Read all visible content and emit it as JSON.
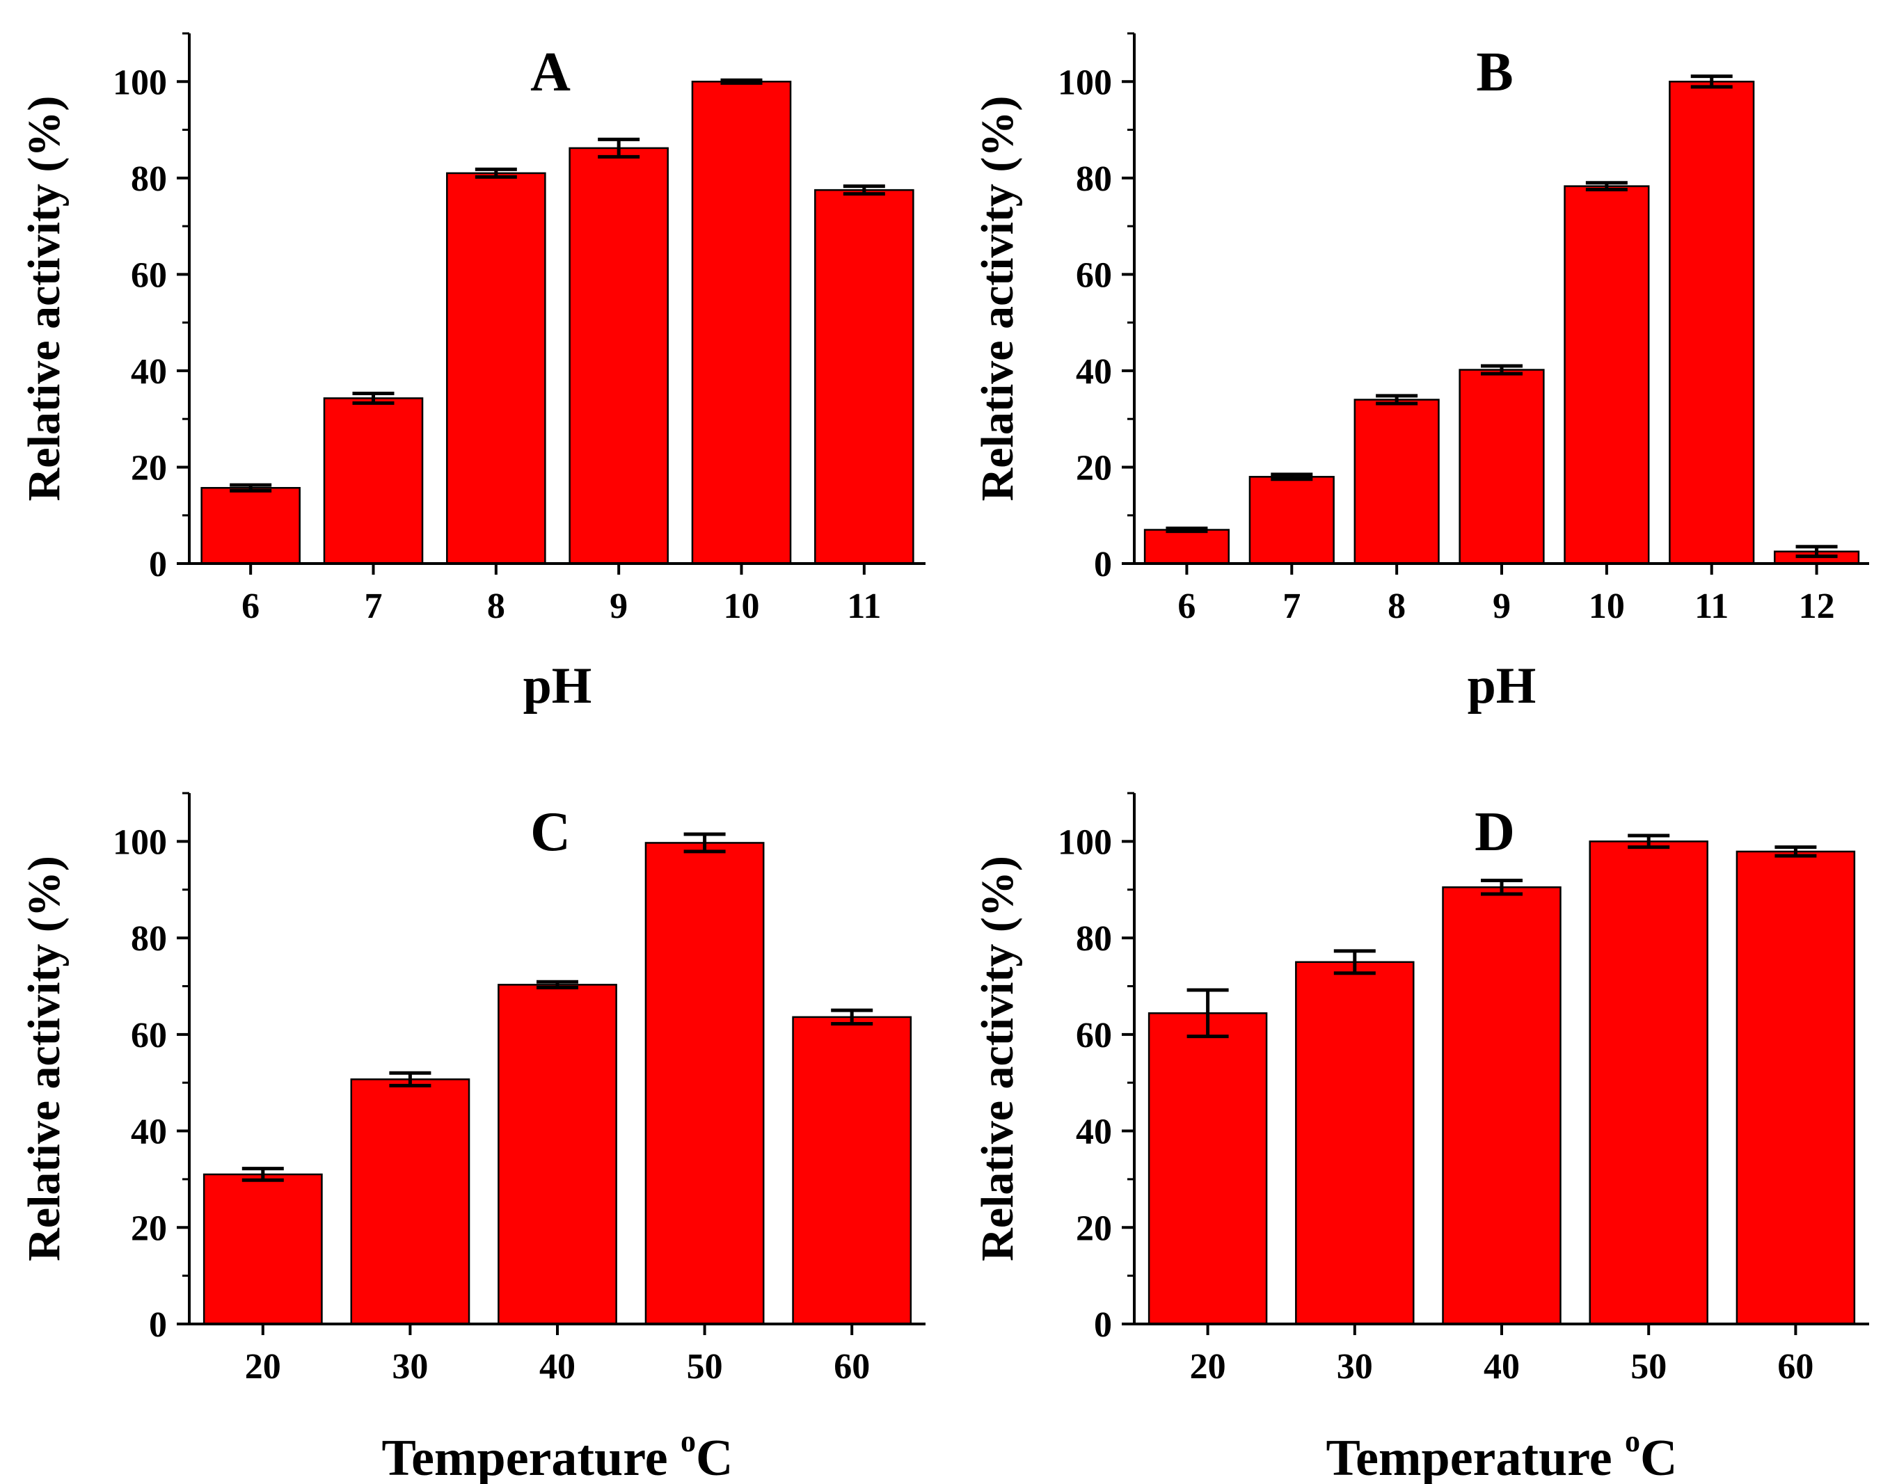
{
  "colors": {
    "bar": "#ff0000",
    "bar_stroke": "#000000",
    "axis": "#000000",
    "errorbar": "#000000"
  },
  "chart_data": [
    {
      "type": "bar",
      "panel": "A",
      "categories": [
        "6",
        "7",
        "8",
        "9",
        "10",
        "11"
      ],
      "values": [
        15.7,
        34.3,
        81.0,
        86.2,
        100.0,
        77.5
      ],
      "errors": [
        0.6,
        1.0,
        0.8,
        1.8,
        0.3,
        0.8
      ],
      "xlabel": "pH",
      "ylabel": "Relative activity (%)",
      "ylim": [
        0,
        110
      ],
      "yticks": [
        0,
        20,
        40,
        60,
        80,
        100
      ],
      "grid": false
    },
    {
      "type": "bar",
      "panel": "B",
      "categories": [
        "6",
        "7",
        "8",
        "9",
        "10",
        "11",
        "12"
      ],
      "values": [
        7.0,
        18.0,
        34.0,
        40.2,
        78.3,
        100.0,
        2.5
      ],
      "errors": [
        0.3,
        0.5,
        0.8,
        0.8,
        0.7,
        1.1,
        1.0
      ],
      "xlabel": "pH",
      "ylabel": "Relative activity (%)",
      "ylim": [
        0,
        110
      ],
      "yticks": [
        0,
        20,
        40,
        60,
        80,
        100
      ],
      "grid": false
    },
    {
      "type": "bar",
      "panel": "C",
      "categories": [
        "20",
        "30",
        "40",
        "50",
        "60"
      ],
      "values": [
        31.0,
        50.7,
        70.3,
        99.7,
        63.6
      ],
      "errors": [
        1.2,
        1.3,
        0.6,
        1.8,
        1.4
      ],
      "xlabel": "Temperature",
      "xlabel_unit_sup": "o",
      "xlabel_unit": "C",
      "ylabel": "Relative activity (%)",
      "ylim": [
        0,
        110
      ],
      "yticks": [
        0,
        20,
        40,
        60,
        80,
        100
      ],
      "grid": false
    },
    {
      "type": "bar",
      "panel": "D",
      "categories": [
        "20",
        "30",
        "40",
        "50",
        "60"
      ],
      "values": [
        64.4,
        75.0,
        90.5,
        100.0,
        97.9
      ],
      "errors": [
        4.8,
        2.3,
        1.4,
        1.2,
        0.9
      ],
      "xlabel": "Temperature",
      "xlabel_unit_sup": "o",
      "xlabel_unit": "C",
      "ylabel": "Relative activity (%)",
      "ylim": [
        0,
        110
      ],
      "yticks": [
        0,
        20,
        40,
        60,
        80,
        100
      ],
      "grid": false
    }
  ]
}
